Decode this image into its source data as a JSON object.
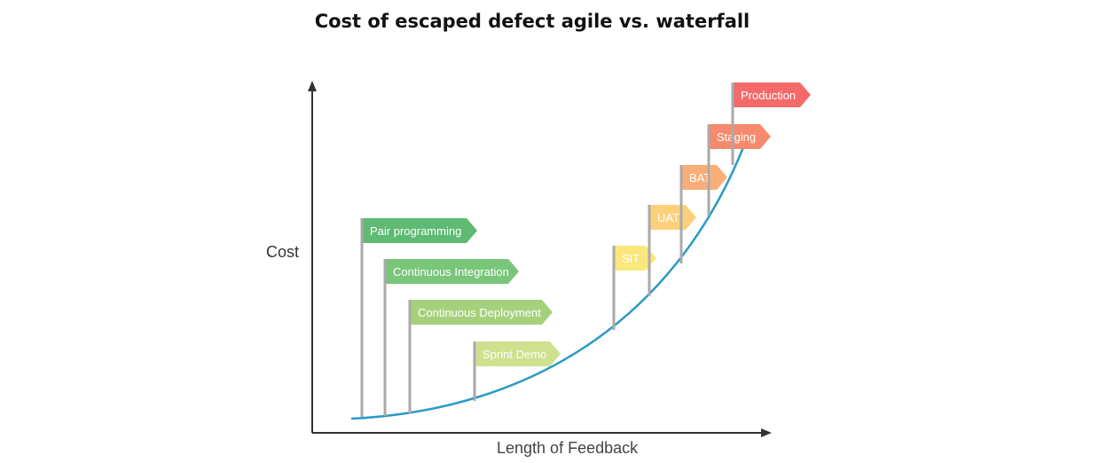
{
  "title": "Cost of escaped defect agile vs. waterfall",
  "axes": {
    "y_label": "Cost",
    "x_label": "Length of Feedback"
  },
  "stages": [
    {
      "label": "Pair programming",
      "color": "#5fba74"
    },
    {
      "label": "Continuous Integration",
      "color": "#79c57a"
    },
    {
      "label": "Continuous Deployment",
      "color": "#a6d17c"
    },
    {
      "label": "Sprint Demo",
      "color": "#cfe08e"
    },
    {
      "label": "SIT",
      "color": "#fbe87c"
    },
    {
      "label": "UAT",
      "color": "#fcd07a"
    },
    {
      "label": "BAT",
      "color": "#f9ad78"
    },
    {
      "label": "Staging",
      "color": "#f78a6c"
    },
    {
      "label": "Production",
      "color": "#f46a6a"
    }
  ],
  "colors": {
    "curve": "#2a9ac6",
    "pole": "#aaaaaa",
    "axis": "#333333"
  }
}
